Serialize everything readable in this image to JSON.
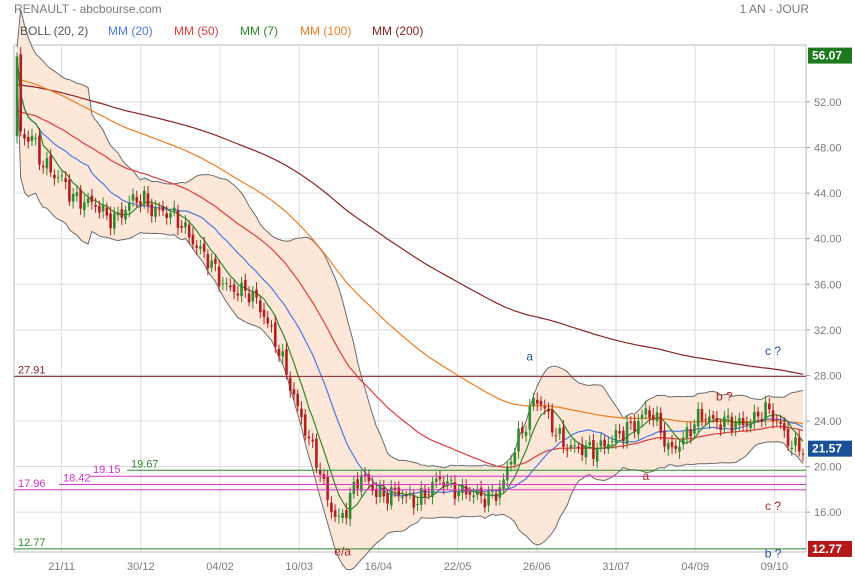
{
  "header": {
    "title": "RENAULT - abcbourse.com",
    "period": "1 AN - JOUR"
  },
  "colors": {
    "up": "#2e8b2e",
    "down": "#b02020",
    "band_fill": "#fde4d4",
    "band_line": "#6b6b6b",
    "mm20": "#4a7be0",
    "mm50": "#e03c3c",
    "mm7": "#2a8a2a",
    "mm100": "#ef7d22",
    "mm200": "#8b2323",
    "grid": "#dcdcdc",
    "badge_green": "#1c7a1c",
    "badge_red": "#b41818",
    "badge_blue": "#1a4f9a"
  },
  "legend": [
    {
      "label": "BOLL (20, 2)",
      "color": "#555555"
    },
    {
      "label": "MM (20)",
      "color": "#4a7be0"
    },
    {
      "label": "MM (50)",
      "color": "#e03c3c"
    },
    {
      "label": "MM (7)",
      "color": "#2a8a2a"
    },
    {
      "label": "MM (100)",
      "color": "#ef7d22"
    },
    {
      "label": "MM (200)",
      "color": "#8b2323"
    }
  ],
  "chart_data": {
    "type": "candlestick",
    "x_ticks": [
      "21/11",
      "30/12",
      "04/02",
      "10/03",
      "16/04",
      "22/05",
      "26/06",
      "31/07",
      "04/09",
      "09/10"
    ],
    "y_ticks": [
      "52.00",
      "48.00",
      "44.00",
      "40.00",
      "36.00",
      "32.00",
      "28.00",
      "24.00",
      "20.00",
      "16.00"
    ],
    "ylim": [
      12.5,
      57
    ],
    "price_path": [
      [
        0,
        56
      ],
      [
        1,
        49
      ],
      [
        2,
        48.5
      ],
      [
        4,
        49
      ],
      [
        6,
        47.3
      ],
      [
        8,
        46.5
      ],
      [
        10,
        45.5
      ],
      [
        12,
        45
      ],
      [
        14,
        44
      ],
      [
        16,
        43.6
      ],
      [
        18,
        43.5
      ],
      [
        20,
        43
      ],
      [
        22,
        42.5
      ],
      [
        24,
        41.8
      ],
      [
        26,
        42
      ],
      [
        28,
        42.4
      ],
      [
        30,
        43
      ],
      [
        32,
        43.3
      ],
      [
        34,
        43.3
      ],
      [
        36,
        42.8
      ],
      [
        38,
        42.6
      ],
      [
        40,
        42.2
      ],
      [
        42,
        41.7
      ],
      [
        44,
        41.2
      ],
      [
        46,
        40.5
      ],
      [
        48,
        39.5
      ],
      [
        50,
        38.5
      ],
      [
        52,
        37.5
      ],
      [
        54,
        36.5
      ],
      [
        56,
        36
      ],
      [
        58,
        35.7
      ],
      [
        60,
        35.3
      ],
      [
        62,
        35
      ],
      [
        64,
        34.5
      ],
      [
        66,
        33.5
      ],
      [
        68,
        32
      ],
      [
        70,
        30
      ],
      [
        72,
        28
      ],
      [
        74,
        26
      ],
      [
        76,
        24.5
      ],
      [
        78,
        22.5
      ],
      [
        80,
        20.5
      ],
      [
        82,
        18
      ],
      [
        84,
        16.2
      ],
      [
        86,
        15.5
      ],
      [
        88,
        16.5
      ],
      [
        90,
        18
      ],
      [
        92,
        19
      ],
      [
        94,
        18.5
      ],
      [
        96,
        18
      ],
      [
        98,
        17.6
      ],
      [
        100,
        17.5
      ],
      [
        102,
        17.5
      ],
      [
        104,
        17.3
      ],
      [
        106,
        17.2
      ],
      [
        108,
        17.4
      ],
      [
        110,
        17.8
      ],
      [
        112,
        18.5
      ],
      [
        114,
        18.8
      ],
      [
        116,
        18.4
      ],
      [
        118,
        18
      ],
      [
        120,
        17.6
      ],
      [
        122,
        17.4
      ],
      [
        124,
        17.3
      ],
      [
        126,
        17.5
      ],
      [
        128,
        17.8
      ],
      [
        130,
        18.5
      ],
      [
        132,
        20.5
      ],
      [
        134,
        22.5
      ],
      [
        136,
        24
      ],
      [
        138,
        26
      ],
      [
        140,
        25.5
      ],
      [
        142,
        24
      ],
      [
        144,
        23
      ],
      [
        146,
        22.3
      ],
      [
        148,
        21.8
      ],
      [
        150,
        21.5
      ],
      [
        152,
        21.3
      ],
      [
        154,
        21.5
      ],
      [
        156,
        22
      ],
      [
        158,
        22.3
      ],
      [
        160,
        22.5
      ],
      [
        162,
        22.8
      ],
      [
        164,
        23.5
      ],
      [
        166,
        24.2
      ],
      [
        168,
        25
      ],
      [
        170,
        24.3
      ],
      [
        172,
        23
      ],
      [
        174,
        21.5
      ],
      [
        176,
        22
      ],
      [
        178,
        22.5
      ],
      [
        180,
        23.2
      ],
      [
        182,
        24
      ],
      [
        184,
        24.5
      ],
      [
        186,
        24.2
      ],
      [
        188,
        24
      ],
      [
        190,
        23.8
      ],
      [
        192,
        23.5
      ],
      [
        194,
        23.8
      ],
      [
        196,
        24.2
      ],
      [
        198,
        24.6
      ],
      [
        200,
        24.8
      ],
      [
        202,
        24.3
      ],
      [
        204,
        23.6
      ],
      [
        206,
        22.5
      ],
      [
        208,
        21.8
      ],
      [
        210,
        21.5
      ]
    ],
    "indicators": [
      "BOLL (20, 2)",
      "MM (20)",
      "MM (50)",
      "MM (7)",
      "MM (100)",
      "MM (200)"
    ],
    "last_price": "21.57",
    "max_label": "56.07",
    "min_label": "12.77",
    "levels": [
      {
        "value": 27.91,
        "label": "27.91",
        "color": "#8b2323",
        "x_start": 0
      },
      {
        "value": 19.67,
        "label": "19.67",
        "color": "#2a8a2a",
        "x_start": 113
      },
      {
        "value": 19.15,
        "label": "19.15",
        "color": "#d633c9",
        "x_start": 75
      },
      {
        "value": 18.42,
        "label": "18.42",
        "color": "#d633c9",
        "x_start": 45
      },
      {
        "value": 17.96,
        "label": "17.96",
        "color": "#d633c9",
        "x_start": 0
      },
      {
        "value": 12.77,
        "label": "12.77",
        "color": "#2a8a2a",
        "x_start": 0
      }
    ],
    "wave_labels": [
      {
        "text": "a",
        "x": 137,
        "y": 29.3,
        "color": "#1a4f9a"
      },
      {
        "text": "c ?",
        "x": 202,
        "y": 29.8,
        "color": "#1a4f9a"
      },
      {
        "text": "b ?",
        "x": 189,
        "y": 25.8,
        "color": "#b02020"
      },
      {
        "text": "a",
        "x": 168,
        "y": 18.8,
        "color": "#b02020"
      },
      {
        "text": "c ?",
        "x": 202,
        "y": 16.2,
        "color": "#b02020"
      },
      {
        "text": "b ?",
        "x": 202,
        "y": 12.0,
        "color": "#1a4f9a"
      },
      {
        "text": "e/a",
        "x": 87,
        "y": 12.2,
        "color": "#b02020"
      }
    ]
  }
}
